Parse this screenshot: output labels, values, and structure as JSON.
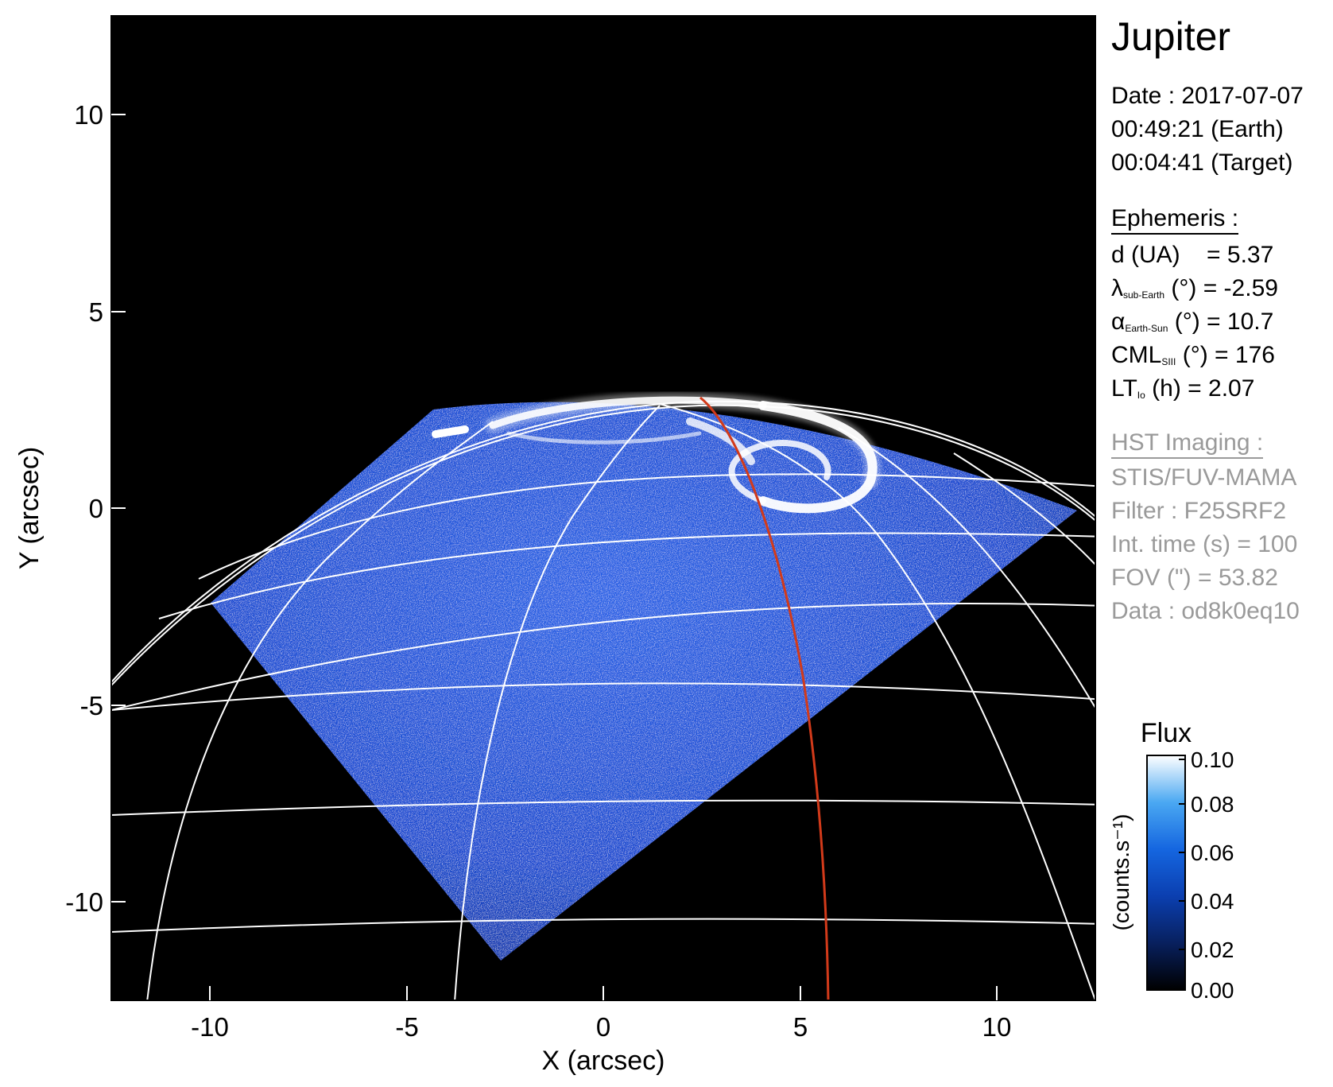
{
  "panel": {
    "title": "Jupiter",
    "date": "Date : 2017-07-07",
    "time_earth": "00:49:21 (Earth)",
    "time_target": "00:04:41 (Target)",
    "ephemeris_header": "Ephemeris :",
    "distance": {
      "label": "d (UA)",
      "value": "= 5.37"
    },
    "sub_earth_lat": {
      "symbol": "λ",
      "subscript": "sub-Earth",
      "unit": "(°)",
      "value": "= -2.59"
    },
    "phase_angle": {
      "symbol": "α",
      "subscript": "Earth-Sun",
      "unit": "(°)",
      "value": "= 10.7"
    },
    "cml": {
      "symbol": "CML",
      "subscript": "SIII",
      "unit": "(°)",
      "value": "= 176"
    },
    "lt_io": {
      "symbol": "LT",
      "subscript": "Io",
      "unit": "(h)",
      "value": "= 2.07"
    },
    "imaging_header": "HST Imaging :",
    "instrument": "STIS/FUV-MAMA",
    "filter": "Filter : F25SRF2",
    "int_time": "Int. time (s) = 100",
    "fov": "FOV (\") = 53.82",
    "dataset": "Data : od8k0eq10"
  },
  "axes": {
    "xlabel": "X (arcsec)",
    "ylabel": "Y (arcsec)",
    "xrange": [
      -12.5,
      12.5
    ],
    "yrange": [
      -12.5,
      12.5
    ],
    "xticks": [
      -10,
      -5,
      0,
      5,
      10
    ],
    "yticks": [
      -10,
      -5,
      0,
      5,
      10
    ]
  },
  "colorbar": {
    "title": "Flux",
    "unit": "(counts.s⁻¹)",
    "range": [
      0.0,
      0.1
    ],
    "ticks": [
      "0.00",
      "0.02",
      "0.04",
      "0.06",
      "0.08",
      "0.10"
    ],
    "colors": [
      "#000000",
      "#08205e",
      "#0b3fb0",
      "#1566e0",
      "#4aa8f2",
      "#ffffff"
    ]
  },
  "colors": {
    "background": "#000000",
    "grid": "#ffffff",
    "io_footprint": "#d23a1a",
    "aurora": "#ffffff",
    "disk_emission": "#1a4fd6"
  }
}
